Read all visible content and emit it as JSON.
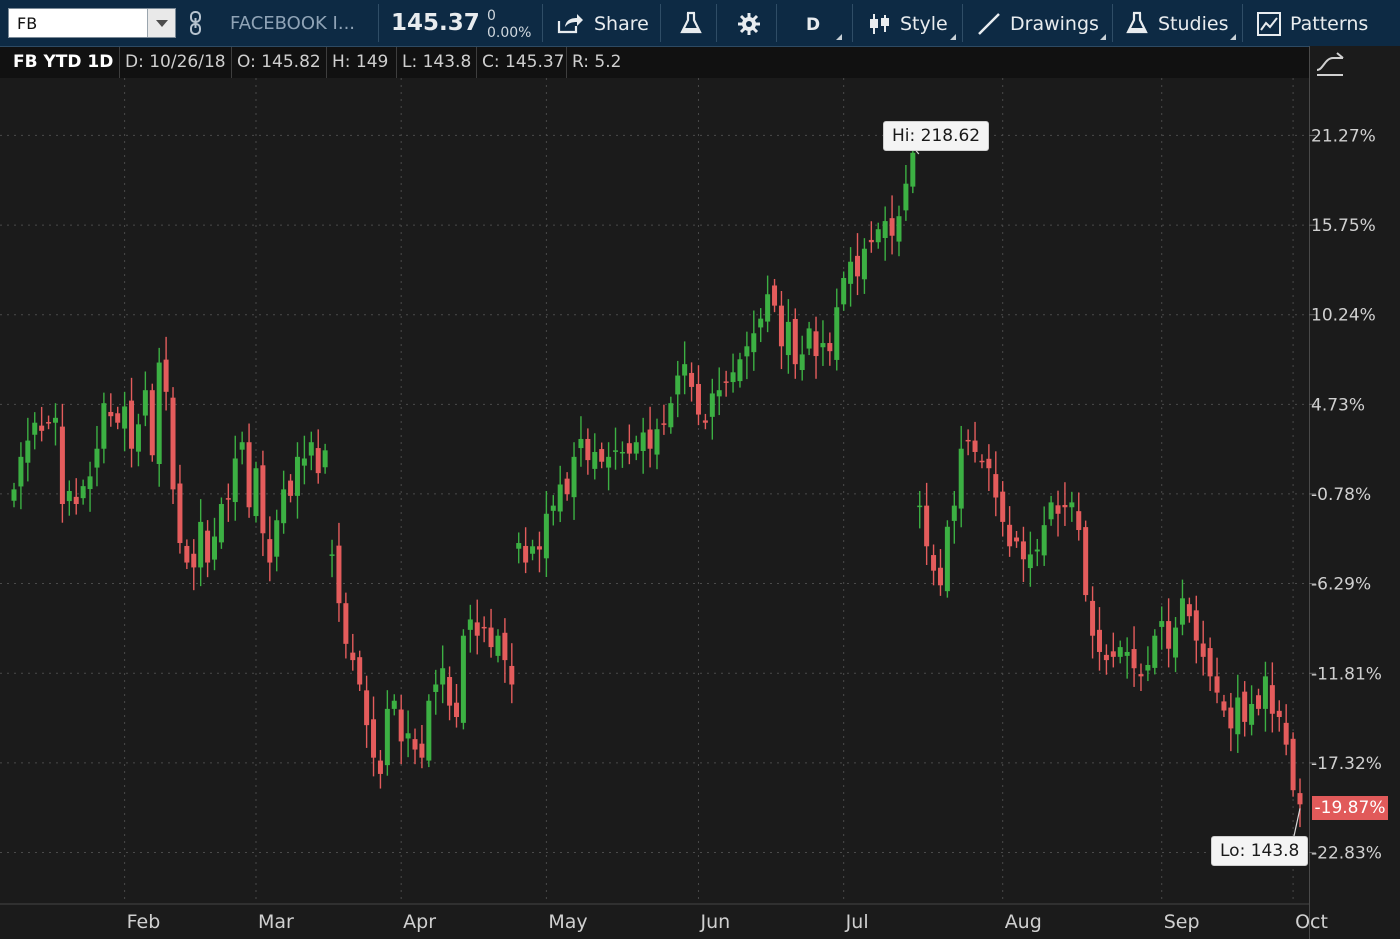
{
  "toolbar": {
    "symbol": "FB",
    "company_name": "FACEBOOK I...",
    "last_price": "145.37",
    "net_change": "0",
    "pct_change": "0.00%",
    "share_label": "Share",
    "period_label": "D",
    "style_label": "Style",
    "drawings_label": "Drawings",
    "studies_label": "Studies",
    "patterns_label": "Patterns"
  },
  "info_bar": {
    "title": "FB YTD 1D",
    "date": "D: 10/26/18",
    "open": "O: 145.82",
    "high": "H: 149",
    "low": "L: 143.8",
    "close": "C: 145.37",
    "range": "R: 5.2"
  },
  "colors": {
    "up": "#3cb043",
    "down": "#e45c5c",
    "toolbar_bg": "#0d2a44",
    "chart_bg": "#1b1b1b",
    "grid": "#4a4a4a"
  },
  "chart_data": {
    "type": "candlestick",
    "symbol": "FB",
    "ylabel_format": "percent",
    "y_ticks": [
      "21.27%",
      "15.75%",
      "10.24%",
      "4.73%",
      "-0.78%",
      "-6.29%",
      "-11.81%",
      "-17.32%",
      "-22.83%"
    ],
    "x_ticks": [
      "Feb",
      "Mar",
      "Apr",
      "May",
      "Jun",
      "Jul",
      "Aug",
      "Sep",
      "Oct"
    ],
    "ylim_percent": [
      -26,
      24.8
    ],
    "current_change": "-19.87%",
    "high_annotation": "Hi: 218.62",
    "low_annotation": "Lo: 143.8",
    "grid": true,
    "approx_closes_percent": [
      -0.5,
      1.5,
      2.5,
      3.6,
      3.1,
      3.6,
      3.9,
      -1.4,
      -0.6,
      -1.4,
      -0.3,
      0.3,
      2.0,
      4.8,
      4.0,
      3.6,
      4.6,
      2.0,
      3.5,
      5.6,
      1.6,
      7.3,
      5.5,
      -0.5,
      -3.8,
      -5.0,
      -5.3,
      -2.5,
      -5.0,
      -3.4,
      -1.4,
      -1.1,
      1.4,
      2.4,
      -1.6,
      0.8,
      -3.2,
      -5.0,
      -2.4,
      -0.5,
      -0.9,
      1.5,
      1.4,
      2.4,
      0.5,
      1.9,
      -4.5,
      -7.5,
      -10.0,
      -11.0,
      -12.5,
      -15.0,
      -17.0,
      -18.0,
      -14.0,
      -13.5,
      -16.0,
      -15.5,
      -16.5,
      -17.0,
      -13.5,
      -12.5,
      -11.5,
      -13.8,
      -14.5,
      -9.5,
      -8.5,
      -9.5,
      -9.0,
      -10.2,
      -9.5,
      -11.0,
      -12.5,
      -3.8,
      -5.0,
      -4.0,
      -4.2,
      -2.0,
      -1.5,
      -0.2,
      -0.8,
      1.5,
      2.6,
      1.3,
      1.8,
      1.2,
      1.5,
      1.9,
      1.8,
      1.7,
      2.4,
      3.0,
      2.0,
      3.2,
      3.5,
      4.8,
      6.5,
      7.2,
      5.8,
      4.1,
      3.6,
      5.4,
      5.6,
      6.1,
      6.7,
      7.5,
      8.3,
      9.1,
      10.0,
      11.5,
      10.8,
      8.3,
      9.8,
      7.2,
      7.8,
      9.4,
      7.7,
      8.5,
      8.0,
      10.7,
      12.5,
      13.5,
      12.6,
      14.3,
      14.7,
      15.5,
      16.0,
      15.1,
      16.3,
      18.3,
      20.2,
      -1.5,
      -4.0,
      -5.5,
      -6.4,
      -2.8,
      -1.5,
      2.0,
      2.5,
      1.8,
      1.2,
      0.8,
      -1.0,
      -2.5,
      -4.0,
      -3.7,
      -4.8,
      -4.5,
      -4.2,
      -2.7,
      -1.3,
      -2.0,
      -1.6,
      -1.3,
      -3.0,
      -7.0,
      -9.5,
      -10.5,
      -11.0,
      -10.8,
      -10.2,
      -10.5,
      -11.5,
      -12.0,
      -11.3,
      -9.5,
      -8.6,
      -10.3,
      -9.0,
      -7.2,
      -8.3,
      -9.8,
      -10.8,
      -12.0,
      -13.0,
      -14.1,
      -15.2,
      -13.3,
      -14.8,
      -13.7,
      -14.0,
      -12.0,
      -14.3,
      -14.5,
      -16.2,
      -19.0,
      -19.87
    ]
  }
}
